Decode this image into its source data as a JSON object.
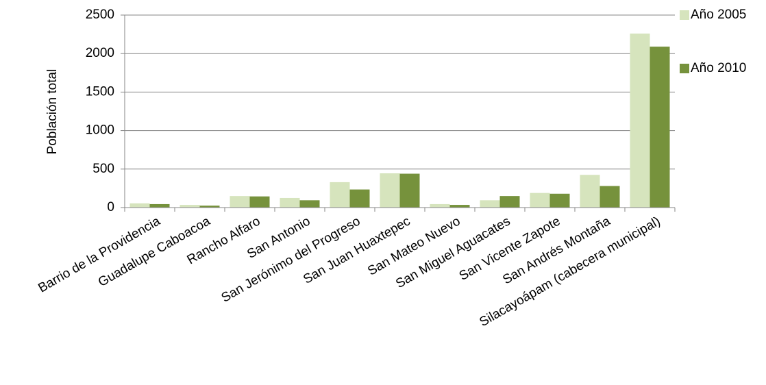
{
  "chart_data": {
    "type": "bar",
    "ylabel": "Población total",
    "xlabel": "",
    "ylim": [
      0,
      2500
    ],
    "yticks": [
      0,
      500,
      1000,
      1500,
      2000,
      2500
    ],
    "grid": true,
    "legend_position": "top-right",
    "categories": [
      "Barrio de la Providencia",
      "Guadalupe Caboacoa",
      "Rancho Alfaro",
      "San Antonio",
      "San Jerónimo del Progreso",
      "San Juan Huaxtepec",
      "San Mateo Nuevo",
      "San Miguel Aguacates",
      "San Vicente Zapote",
      "San Andrés Montaña",
      "Silacayoápam (cabecera municipal)"
    ],
    "series": [
      {
        "name": "Año 2005",
        "color": "#d6e4bd",
        "values": [
          55,
          35,
          150,
          125,
          330,
          445,
          45,
          95,
          190,
          425,
          2260
        ]
      },
      {
        "name": "Año 2010",
        "color": "#76923c",
        "values": [
          45,
          25,
          145,
          95,
          235,
          440,
          35,
          150,
          180,
          280,
          2090
        ]
      }
    ]
  }
}
